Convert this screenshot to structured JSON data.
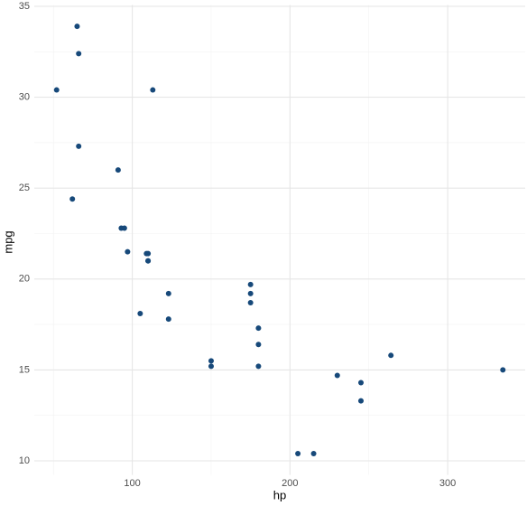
{
  "chart_data": {
    "type": "scatter",
    "x_label": "hp",
    "y_label": "mpg",
    "x": [
      110,
      110,
      93,
      110,
      175,
      105,
      245,
      62,
      95,
      123,
      123,
      180,
      180,
      180,
      205,
      215,
      230,
      66,
      52,
      65,
      97,
      150,
      150,
      245,
      175,
      66,
      91,
      113,
      264,
      175,
      335,
      109
    ],
    "y": [
      21.0,
      21.0,
      22.8,
      21.4,
      18.7,
      18.1,
      14.3,
      24.4,
      22.8,
      19.2,
      17.8,
      16.4,
      17.3,
      15.2,
      10.4,
      10.4,
      14.7,
      32.4,
      30.4,
      33.9,
      21.5,
      15.5,
      15.2,
      13.3,
      19.2,
      27.3,
      26.0,
      30.4,
      15.8,
      19.7,
      15.0,
      21.4
    ],
    "color": "#17497a",
    "xlim": [
      37.85,
      349.15
    ],
    "ylim": [
      9.225,
      35.075
    ],
    "xticks": [
      100,
      200,
      300
    ],
    "yticks": [
      10,
      15,
      20,
      25,
      30,
      35
    ],
    "grid": true
  }
}
